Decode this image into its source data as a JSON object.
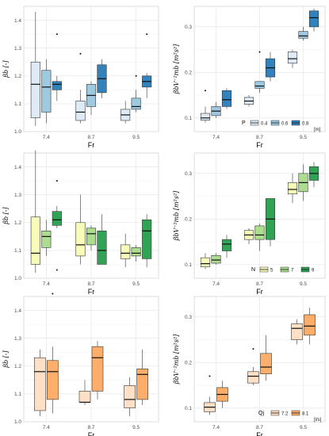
{
  "chart_data": [
    {
      "type": "box",
      "xlabel": "Fr",
      "ylabel": "βb [-]",
      "categories": [
        "7.4",
        "8.7",
        "9.5"
      ],
      "ylim": [
        1.0,
        1.45
      ],
      "yticks": [
        1.0,
        1.1,
        1.2,
        1.3,
        1.4
      ],
      "ytick_labels": [
        "1.0",
        "1.1",
        "1.2",
        "1.3",
        "1.4"
      ],
      "legend": null,
      "series": [
        {
          "name": "0.4",
          "color": "#deebf7",
          "boxes": [
            {
              "min": 1.02,
              "q1": 1.05,
              "median": 1.17,
              "q3": 1.25,
              "max": 1.43,
              "outliers": []
            },
            {
              "min": 1.03,
              "q1": 1.04,
              "median": 1.07,
              "q3": 1.11,
              "max": 1.15,
              "outliers": [
                1.28
              ]
            },
            {
              "min": 1.03,
              "q1": 1.04,
              "median": 1.06,
              "q3": 1.08,
              "max": 1.11,
              "outliers": []
            }
          ]
        },
        {
          "name": "0.6",
          "color": "#9ecae1",
          "boxes": [
            {
              "min": 1.03,
              "q1": 1.07,
              "median": 1.16,
              "q3": 1.22,
              "max": 1.26,
              "outliers": []
            },
            {
              "min": 1.06,
              "q1": 1.09,
              "median": 1.13,
              "q3": 1.17,
              "max": 1.18,
              "outliers": []
            },
            {
              "min": 1.07,
              "q1": 1.08,
              "median": 1.09,
              "q3": 1.12,
              "max": 1.15,
              "outliers": [
                1.2
              ]
            }
          ]
        },
        {
          "name": "0.8",
          "color": "#3182bd",
          "boxes": [
            {
              "min": 1.11,
              "q1": 1.15,
              "median": 1.17,
              "q3": 1.18,
              "max": 1.2,
              "outliers": [
                1.35
              ]
            },
            {
              "min": 1.12,
              "q1": 1.14,
              "median": 1.19,
              "q3": 1.24,
              "max": 1.26,
              "outliers": []
            },
            {
              "min": 1.12,
              "q1": 1.16,
              "median": 1.18,
              "q3": 1.2,
              "max": 1.21,
              "outliers": [
                1.35
              ]
            }
          ]
        }
      ]
    },
    {
      "type": "box",
      "xlabel": "Fr",
      "ylabel": "βbV⁻²mb [m²s²]",
      "categories": [
        "7.4",
        "8.7",
        "9.5"
      ],
      "ylim": [
        0.07,
        0.345
      ],
      "yticks": [
        0.1,
        0.2,
        0.3
      ],
      "ytick_labels": [
        "0.1",
        "0.2",
        "0.3"
      ],
      "legend": {
        "title": "P",
        "unit": "[m]",
        "position": "bottom-right"
      },
      "series": [
        {
          "name": "0.4",
          "color": "#deebf7",
          "boxes": [
            {
              "min": 0.09,
              "q1": 0.095,
              "median": 0.1,
              "q3": 0.11,
              "max": 0.125,
              "outliers": [
                0.16
              ]
            },
            {
              "min": 0.125,
              "q1": 0.13,
              "median": 0.137,
              "q3": 0.145,
              "max": 0.15,
              "outliers": []
            },
            {
              "min": 0.21,
              "q1": 0.22,
              "median": 0.23,
              "q3": 0.245,
              "max": 0.25,
              "outliers": []
            }
          ]
        },
        {
          "name": "0.6",
          "color": "#9ecae1",
          "boxes": [
            {
              "min": 0.1,
              "q1": 0.105,
              "median": 0.115,
              "q3": 0.125,
              "max": 0.135,
              "outliers": []
            },
            {
              "min": 0.155,
              "q1": 0.165,
              "median": 0.17,
              "q3": 0.18,
              "max": 0.18,
              "outliers": [
                0.245
              ]
            },
            {
              "min": 0.27,
              "q1": 0.275,
              "median": 0.28,
              "q3": 0.29,
              "max": 0.3,
              "outliers": []
            }
          ]
        },
        {
          "name": "0.8",
          "color": "#3182bd",
          "boxes": [
            {
              "min": 0.12,
              "q1": 0.125,
              "median": 0.14,
              "q3": 0.16,
              "max": 0.165,
              "outliers": []
            },
            {
              "min": 0.18,
              "q1": 0.19,
              "median": 0.21,
              "q3": 0.23,
              "max": 0.245,
              "outliers": []
            },
            {
              "min": 0.29,
              "q1": 0.3,
              "median": 0.32,
              "q3": 0.335,
              "max": 0.34,
              "outliers": []
            }
          ]
        }
      ]
    },
    {
      "type": "box",
      "xlabel": "Fr",
      "ylabel": "βb [-]",
      "categories": [
        "7.4",
        "8.7",
        "9.5"
      ],
      "ylim": [
        1.0,
        1.45
      ],
      "yticks": [
        1.0,
        1.1,
        1.2,
        1.3,
        1.4
      ],
      "ytick_labels": [
        "1.0",
        "1.1",
        "1.2",
        "1.3",
        "1.4"
      ],
      "legend": null,
      "series": [
        {
          "name": "5",
          "color": "#f7fcb9",
          "boxes": [
            {
              "min": 1.02,
              "q1": 1.05,
              "median": 1.09,
              "q3": 1.22,
              "max": 1.46,
              "outliers": []
            },
            {
              "min": 1.05,
              "q1": 1.08,
              "median": 1.12,
              "q3": 1.2,
              "max": 1.3,
              "outliers": []
            },
            {
              "min": 1.04,
              "q1": 1.07,
              "median": 1.09,
              "q3": 1.12,
              "max": 1.16,
              "outliers": []
            }
          ]
        },
        {
          "name": "7",
          "color": "#addd8e",
          "boxes": [
            {
              "min": 1.08,
              "q1": 1.11,
              "median": 1.15,
              "q3": 1.17,
              "max": 1.21,
              "outliers": []
            },
            {
              "min": 1.1,
              "q1": 1.12,
              "median": 1.16,
              "q3": 1.18,
              "max": 1.19,
              "outliers": []
            },
            {
              "min": 1.06,
              "q1": 1.08,
              "median": 1.09,
              "q3": 1.11,
              "max": 1.12,
              "outliers": []
            }
          ]
        },
        {
          "name": "9",
          "color": "#31a354",
          "boxes": [
            {
              "min": 1.18,
              "q1": 1.19,
              "median": 1.21,
              "q3": 1.24,
              "max": 1.26,
              "outliers": [
                1.35,
                1.03
              ]
            },
            {
              "min": 1.05,
              "q1": 1.05,
              "median": 1.1,
              "q3": 1.17,
              "max": 1.23,
              "outliers": []
            },
            {
              "min": 1.04,
              "q1": 1.07,
              "median": 1.17,
              "q3": 1.21,
              "max": 1.23,
              "outliers": []
            }
          ]
        }
      ]
    },
    {
      "type": "box",
      "xlabel": "Fr",
      "ylabel": "βbV⁻²mb [m²s²]",
      "categories": [
        "7.4",
        "8.7",
        "9.5"
      ],
      "ylim": [
        0.07,
        0.345
      ],
      "yticks": [
        0.1,
        0.2,
        0.3
      ],
      "ytick_labels": [
        "0.1",
        "0.2",
        "0.3"
      ],
      "legend": {
        "title": "N",
        "unit": "",
        "position": "bottom-right"
      },
      "series": [
        {
          "name": "5",
          "color": "#f7fcb9",
          "boxes": [
            {
              "min": 0.09,
              "q1": 0.095,
              "median": 0.102,
              "q3": 0.115,
              "max": 0.125,
              "outliers": []
            },
            {
              "min": 0.145,
              "q1": 0.155,
              "median": 0.165,
              "q3": 0.175,
              "max": 0.18,
              "outliers": []
            },
            {
              "min": 0.235,
              "q1": 0.255,
              "median": 0.265,
              "q3": 0.28,
              "max": 0.3,
              "outliers": []
            }
          ]
        },
        {
          "name": "7",
          "color": "#addd8e",
          "boxes": [
            {
              "min": 0.1,
              "q1": 0.103,
              "median": 0.11,
              "q3": 0.12,
              "max": 0.125,
              "outliers": []
            },
            {
              "min": 0.13,
              "q1": 0.155,
              "median": 0.165,
              "q3": 0.185,
              "max": 0.19,
              "outliers": []
            },
            {
              "min": 0.24,
              "q1": 0.26,
              "median": 0.28,
              "q3": 0.3,
              "max": 0.32,
              "outliers": []
            }
          ]
        },
        {
          "name": "9",
          "color": "#31a354",
          "boxes": [
            {
              "min": 0.115,
              "q1": 0.13,
              "median": 0.145,
              "q3": 0.155,
              "max": 0.165,
              "outliers": []
            },
            {
              "min": 0.14,
              "q1": 0.155,
              "median": 0.2,
              "q3": 0.245,
              "max": 0.245,
              "outliers": []
            },
            {
              "min": 0.27,
              "q1": 0.285,
              "median": 0.3,
              "q3": 0.315,
              "max": 0.325,
              "outliers": []
            }
          ]
        }
      ]
    },
    {
      "type": "box",
      "xlabel": "Fr",
      "ylabel": "βb [-]",
      "categories": [
        "7.4",
        "8.7",
        "9.5"
      ],
      "ylim": [
        1.0,
        1.45
      ],
      "yticks": [
        1.0,
        1.1,
        1.2,
        1.3,
        1.4
      ],
      "ytick_labels": [
        "1.0",
        "1.1",
        "1.2",
        "1.3",
        "1.4"
      ],
      "legend": null,
      "series": [
        {
          "name": "7.2",
          "color": "#fde0c5",
          "boxes": [
            {
              "min": 1.02,
              "q1": 1.04,
              "median": 1.18,
              "q3": 1.23,
              "max": 1.26,
              "outliers": []
            },
            {
              "min": 1.06,
              "q1": 1.07,
              "median": 1.07,
              "q3": 1.11,
              "max": 1.15,
              "outliers": []
            },
            {
              "min": 1.02,
              "q1": 1.05,
              "median": 1.08,
              "q3": 1.13,
              "max": 1.16,
              "outliers": []
            }
          ]
        },
        {
          "name": "8.1",
          "color": "#fdae6b",
          "boxes": [
            {
              "min": 1.03,
              "q1": 1.08,
              "median": 1.18,
              "q3": 1.22,
              "max": 1.27,
              "outliers": [
                1.46
              ]
            },
            {
              "min": 1.08,
              "q1": 1.11,
              "median": 1.23,
              "q3": 1.27,
              "max": 1.29,
              "outliers": []
            },
            {
              "min": 1.06,
              "q1": 1.08,
              "median": 1.17,
              "q3": 1.19,
              "max": 1.26,
              "outliers": []
            }
          ]
        }
      ]
    },
    {
      "type": "box",
      "xlabel": "Fr",
      "ylabel": "βbV⁻²mb [m²s²]",
      "categories": [
        "7.4",
        "8.7",
        "9.5"
      ],
      "ylim": [
        0.07,
        0.345
      ],
      "yticks": [
        0.1,
        0.2,
        0.3
      ],
      "ytick_labels": [
        "0.1",
        "0.2",
        "0.3"
      ],
      "legend": {
        "title": "Qj",
        "unit": "[l/s]",
        "position": "bottom-right"
      },
      "series": [
        {
          "name": "7.2",
          "color": "#fde0c5",
          "boxes": [
            {
              "min": 0.085,
              "q1": 0.092,
              "median": 0.102,
              "q3": 0.112,
              "max": 0.125,
              "outliers": [
                0.17
              ]
            },
            {
              "min": 0.15,
              "q1": 0.155,
              "median": 0.17,
              "q3": 0.18,
              "max": 0.19,
              "outliers": [
                0.23
              ]
            },
            {
              "min": 0.24,
              "q1": 0.25,
              "median": 0.275,
              "q3": 0.285,
              "max": 0.295,
              "outliers": []
            }
          ]
        },
        {
          "name": "8.1",
          "color": "#fdae6b",
          "boxes": [
            {
              "min": 0.1,
              "q1": 0.115,
              "median": 0.13,
              "q3": 0.145,
              "max": 0.16,
              "outliers": []
            },
            {
              "min": 0.16,
              "q1": 0.175,
              "median": 0.19,
              "q3": 0.22,
              "max": 0.26,
              "outliers": []
            },
            {
              "min": 0.24,
              "q1": 0.26,
              "median": 0.28,
              "q3": 0.305,
              "max": 0.32,
              "outliers": []
            }
          ]
        }
      ]
    }
  ]
}
